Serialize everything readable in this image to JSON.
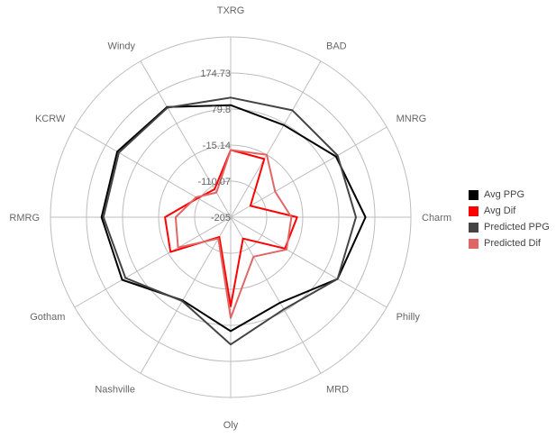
{
  "chart_data": {
    "type": "radar",
    "title": "",
    "categories": [
      "TXRG",
      "BAD",
      "MNRG",
      "Charm",
      "Philly",
      "MRD",
      "Oly",
      "Nashville",
      "Gotham",
      "RMRG",
      "KCRW",
      "Windy"
    ],
    "radial_ticks": [
      "-205",
      "-110.07",
      "-15.14",
      "79.8",
      "174.73"
    ],
    "rlim": [
      -205,
      269.66
    ],
    "grid": true,
    "legend_position": "right",
    "series": [
      {
        "name": "Avg PPG",
        "color": "#000000",
        "values": [
          90,
          75,
          115,
          150,
          120,
          55,
          95,
          48,
          125,
          135,
          140,
          130
        ]
      },
      {
        "name": "Avg Dif",
        "color": "#ff0000",
        "values": [
          -28,
          -28,
          -145,
          -30,
          -40,
          -140,
          30,
          -145,
          -22,
          -32,
          -105,
          -120
        ]
      },
      {
        "name": "Predicted PPG",
        "color": "#444444",
        "values": [
          110,
          120,
          120,
          125,
          120,
          75,
          130,
          50,
          115,
          130,
          135,
          128
        ]
      },
      {
        "name": "Predicted Dif",
        "color": "#e06666",
        "values": [
          -28,
          -15,
          -70,
          -45,
          -35,
          -85,
          60,
          -140,
          -45,
          -60,
          -100,
          -130
        ]
      }
    ]
  }
}
